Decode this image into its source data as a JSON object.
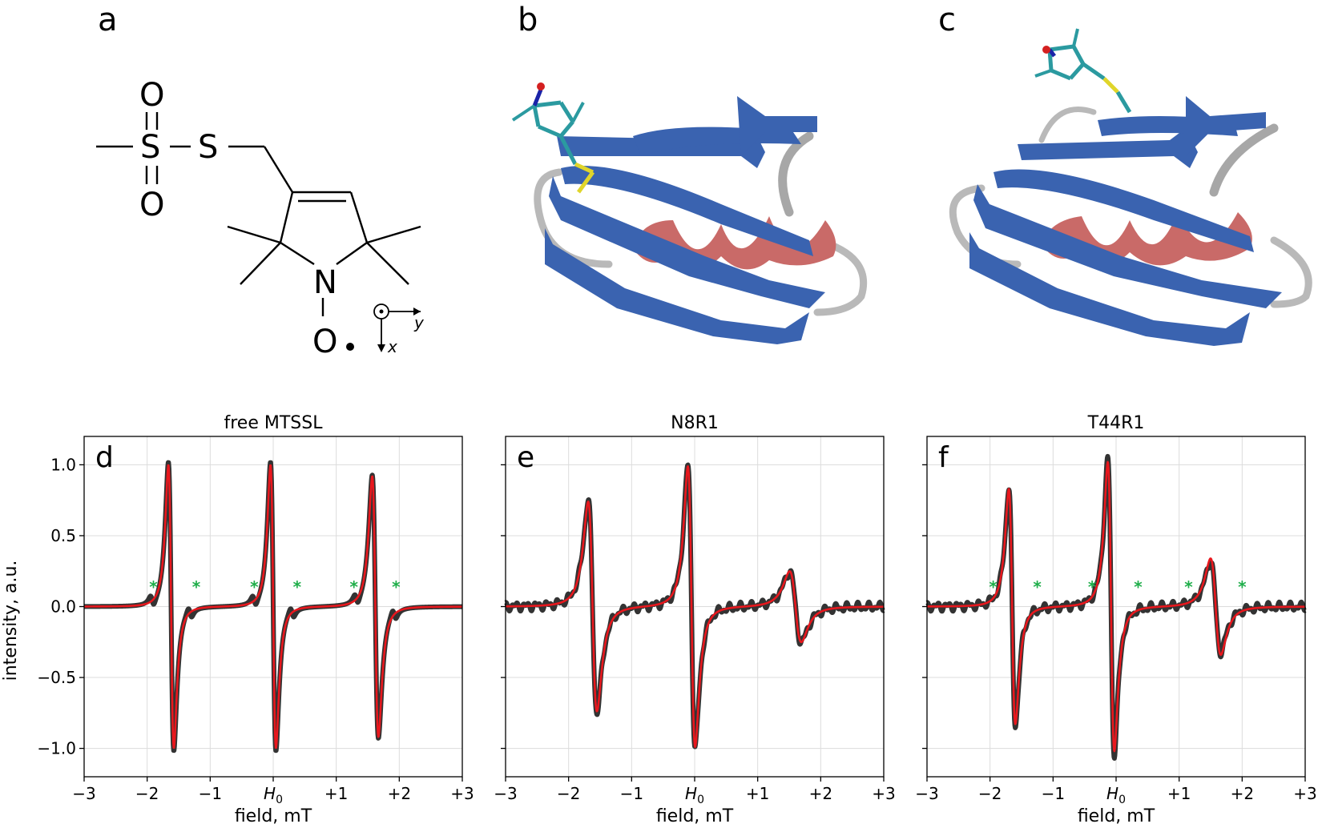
{
  "panels_top": {
    "a": "a",
    "b": "b",
    "c": "c"
  },
  "chem": {
    "O_top": "O",
    "S1": "S",
    "S2": "S",
    "O_bottom": "O",
    "N": "N",
    "O_radical": "O",
    "axis_y": "y",
    "axis_x": "x"
  },
  "ylabel": "intensity, a.u.",
  "xlabel": "field, mT",
  "h0_label": "H",
  "h0_sub": "0",
  "colors": {
    "experiment": "#333333",
    "fit": "#e8171d",
    "star": "#1fae4a",
    "sheet": "#3a63b0",
    "helix": "#c96a68",
    "loop": "#b9b9b9"
  },
  "chart_data": [
    {
      "type": "line",
      "letter": "d",
      "title": "free MTSSL",
      "xlabel": "field, mT",
      "ylabel": "intensity, a.u.",
      "xlim": [
        -3,
        3
      ],
      "ylim": [
        -1.2,
        1.2
      ],
      "xticks": [
        -3,
        -2,
        -1,
        0,
        1,
        2,
        3
      ],
      "xtick_labels": [
        "−3",
        "−2",
        "−1",
        "H0",
        "+1",
        "+2",
        "+3"
      ],
      "yticks": [
        -1.0,
        -0.5,
        0.0,
        0.5,
        1.0
      ],
      "ytick_labels": [
        "−1.0",
        "−0.5",
        "0.0",
        "0.5",
        "1.0"
      ],
      "grid": true,
      "series": [
        {
          "role": "experiment",
          "lines": [
            {
              "center": -1.62,
              "width": 0.075,
              "amp": 1.02
            },
            {
              "center": 0.0,
              "width": 0.075,
              "amp": 1.02
            },
            {
              "center": 1.62,
              "width": 0.085,
              "amp": 0.93
            }
          ],
          "satellites": true
        },
        {
          "role": "fit",
          "lines": [
            {
              "center": -1.62,
              "width": 0.075,
              "amp": 1.0
            },
            {
              "center": 0.0,
              "width": 0.075,
              "amp": 1.0
            },
            {
              "center": 1.62,
              "width": 0.085,
              "amp": 0.92
            }
          ],
          "satellites": false
        }
      ],
      "star_x": [
        -1.9,
        -1.22,
        -0.3,
        0.38,
        1.28,
        1.95
      ]
    },
    {
      "type": "line",
      "letter": "e",
      "title": "N8R1",
      "xlabel": "field, mT",
      "xlim": [
        -3,
        3
      ],
      "ylim": [
        -1.2,
        1.2
      ],
      "xticks": [
        -3,
        -2,
        -1,
        0,
        1,
        2,
        3
      ],
      "xtick_labels": [
        "−3",
        "−2",
        "−1",
        "H0",
        "+1",
        "+2",
        "+3"
      ],
      "yticks": [
        -1.0,
        -0.5,
        0.0,
        0.5,
        1.0
      ],
      "grid": true,
      "series": [
        {
          "role": "experiment",
          "lines": [
            {
              "center": -1.62,
              "width": 0.12,
              "amp": 0.75
            },
            {
              "center": -0.05,
              "width": 0.1,
              "amp": 1.0
            },
            {
              "center": 1.6,
              "width": 0.16,
              "amp": 0.25
            }
          ]
        },
        {
          "role": "fit",
          "lines": [
            {
              "center": -1.62,
              "width": 0.12,
              "amp": 0.74
            },
            {
              "center": -0.05,
              "width": 0.1,
              "amp": 0.99
            },
            {
              "center": 1.6,
              "width": 0.16,
              "amp": 0.25
            }
          ]
        }
      ],
      "star_x": []
    },
    {
      "type": "line",
      "letter": "f",
      "title": "T44R1",
      "xlabel": "field, mT",
      "xlim": [
        -3,
        3
      ],
      "ylim": [
        -1.2,
        1.2
      ],
      "xticks": [
        -3,
        -2,
        -1,
        0,
        1,
        2,
        3
      ],
      "xtick_labels": [
        "−3",
        "−2",
        "−1",
        "H0",
        "+1",
        "+2",
        "+3"
      ],
      "yticks": [
        -1.0,
        -0.5,
        0.0,
        0.5,
        1.0
      ],
      "grid": true,
      "series": [
        {
          "role": "experiment",
          "lines": [
            {
              "center": -1.65,
              "width": 0.09,
              "amp": 0.84
            },
            {
              "center": -0.08,
              "width": 0.09,
              "amp": 1.04
            },
            {
              "center": 1.58,
              "width": 0.14,
              "amp": 0.32
            }
          ]
        },
        {
          "role": "fit",
          "lines": [
            {
              "center": -1.65,
              "width": 0.09,
              "amp": 0.83
            },
            {
              "center": -0.08,
              "width": 0.09,
              "amp": 1.02
            },
            {
              "center": 1.58,
              "width": 0.14,
              "amp": 0.34
            }
          ]
        }
      ],
      "star_x": [
        -1.95,
        -1.25,
        -0.38,
        0.35,
        1.15,
        2.0
      ]
    }
  ]
}
